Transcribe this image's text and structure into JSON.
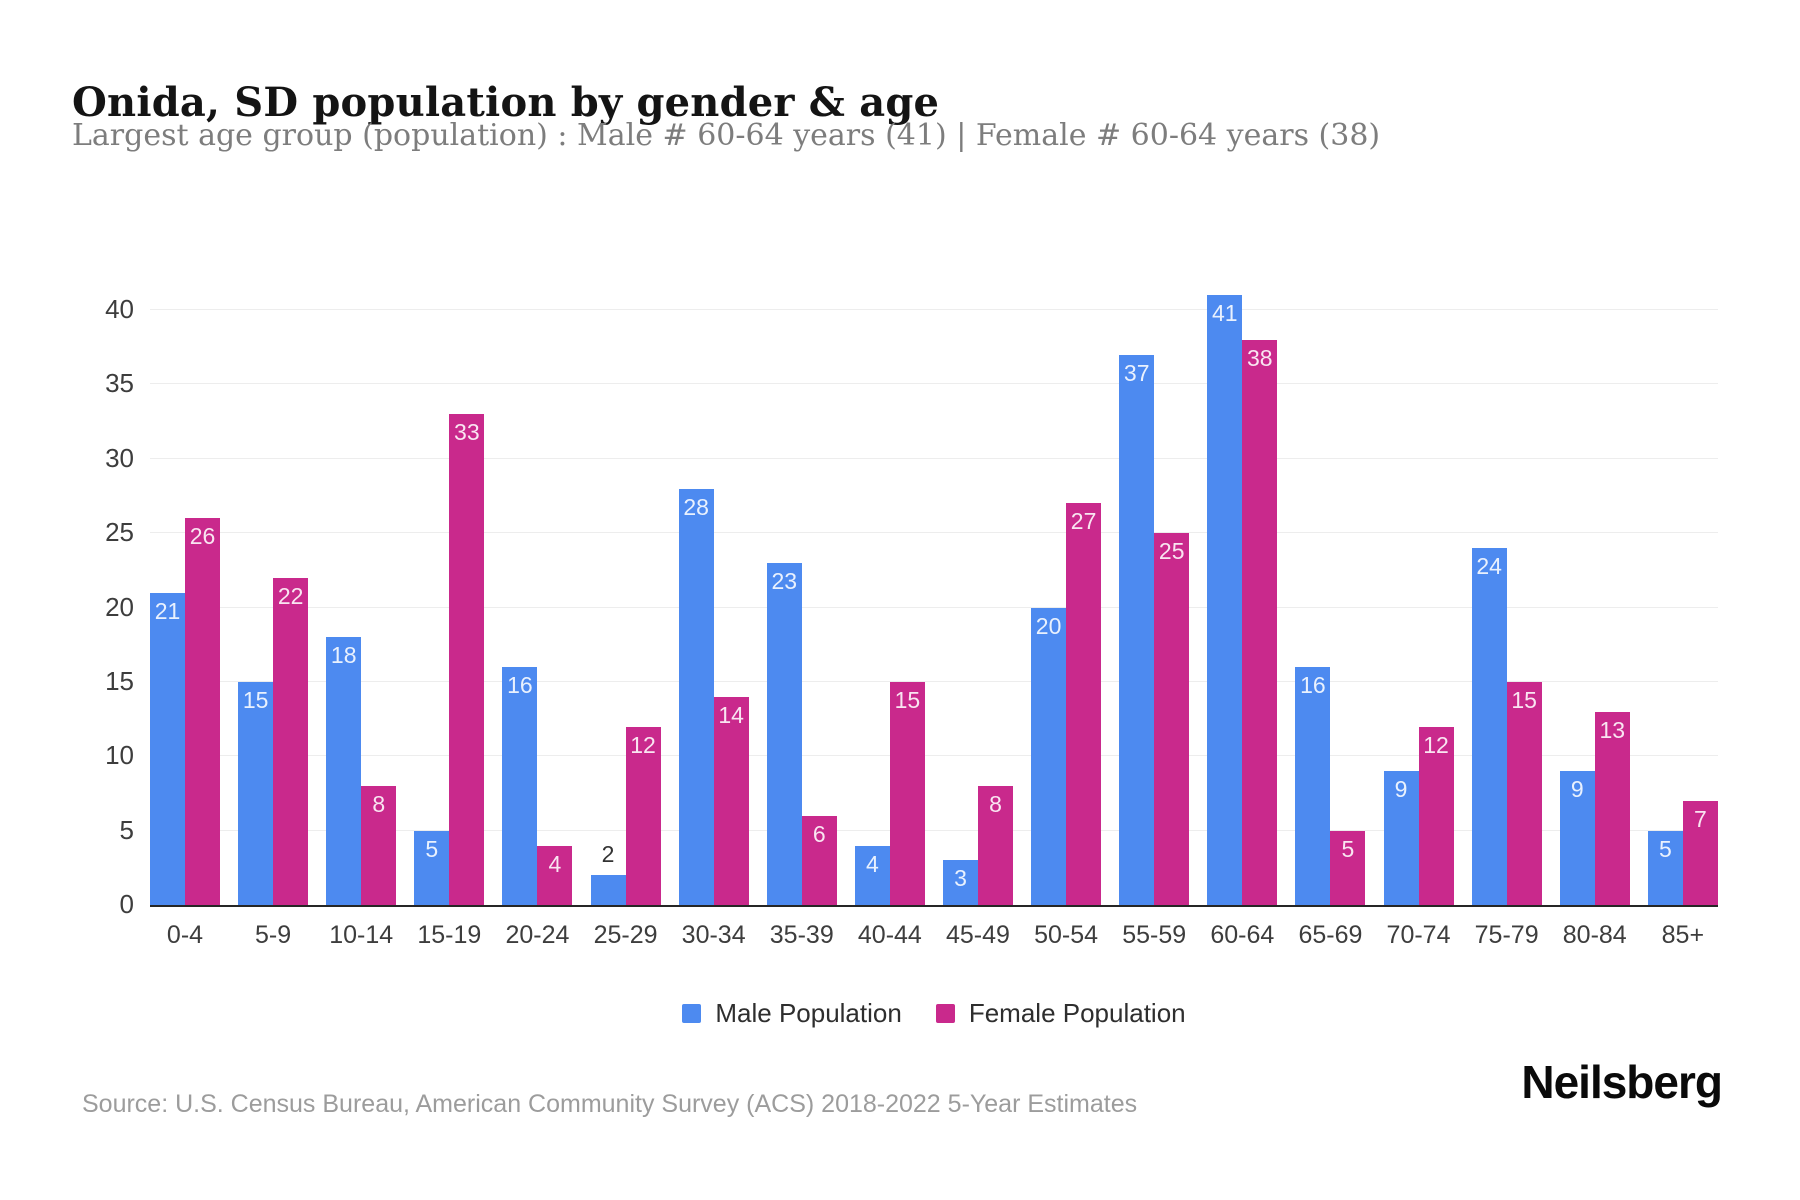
{
  "header": {
    "title": "Onida, SD population by gender & age",
    "subtitle": "Largest age group (population) : Male # 60-64 years (41) | Female # 60-64 years (38)"
  },
  "chart_data": {
    "type": "bar",
    "title": "Onida, SD population by gender & age",
    "subtitle": "Largest age group (population) : Male # 60-64 years (41) | Female # 60-64 years (38)",
    "categories": [
      "0-4",
      "5-9",
      "10-14",
      "15-19",
      "20-24",
      "25-29",
      "30-34",
      "35-39",
      "40-44",
      "45-49",
      "50-54",
      "55-59",
      "60-64",
      "65-69",
      "70-74",
      "75-79",
      "80-84",
      "85+"
    ],
    "series": [
      {
        "name": "Male Population",
        "color": "#4d8af0",
        "values": [
          21,
          15,
          18,
          5,
          16,
          2,
          28,
          23,
          4,
          3,
          20,
          37,
          41,
          16,
          9,
          24,
          9,
          5
        ]
      },
      {
        "name": "Female Population",
        "color": "#c9298c",
        "values": [
          26,
          22,
          8,
          33,
          4,
          12,
          14,
          6,
          15,
          8,
          27,
          25,
          38,
          5,
          12,
          15,
          13,
          7
        ]
      }
    ],
    "xlabel": "",
    "ylabel": "",
    "ylim": [
      0,
      40
    ],
    "y_ticks": [
      0,
      5,
      10,
      15,
      20,
      25,
      30,
      35,
      40
    ],
    "grid": "horizontal",
    "legend_position": "bottom",
    "bar_label_color_inside": "#ffffff",
    "bar_label_color_outside": "#333333",
    "gridline_color": "#ededed",
    "axis_line_color": "#262626"
  },
  "footer": {
    "source": "Source: U.S. Census Bureau, American Community Survey (ACS) 2018-2022 5-Year Estimates",
    "brand": "Neilsberg"
  }
}
